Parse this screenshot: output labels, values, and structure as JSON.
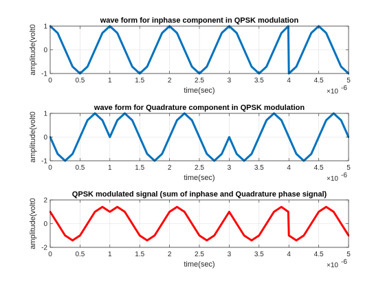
{
  "figure": {
    "background": "#ffffff"
  },
  "chart_data": [
    {
      "type": "line",
      "title": "wave form for inphase component in QPSK modulation",
      "xlabel": "time(sec)",
      "ylabel": "amplitude(volt0",
      "x_exponent_label": "×10",
      "x_exponent_power": "-6",
      "xlim": [
        0,
        5
      ],
      "ylim": [
        -1,
        1
      ],
      "xticks": [
        0,
        0.5,
        1,
        1.5,
        2,
        2.5,
        3,
        3.5,
        4,
        4.5,
        5
      ],
      "xtick_labels": [
        "0",
        "0.5",
        "1",
        "1.5",
        "2",
        "2.5",
        "3",
        "3.5",
        "4",
        "4.5",
        "5"
      ],
      "yticks": [
        -1,
        0,
        1
      ],
      "ytick_labels": [
        "-1",
        "0",
        "1"
      ],
      "grid": true,
      "series": [
        {
          "color": "#0072bd",
          "x": [
            0,
            0.125,
            0.25,
            0.375,
            0.5,
            0.625,
            0.75,
            0.875,
            1,
            1.125,
            1.25,
            1.375,
            1.5,
            1.625,
            1.75,
            1.875,
            2,
            2.125,
            2.25,
            2.375,
            2.5,
            2.625,
            2.75,
            2.875,
            3,
            3.125,
            3.25,
            3.375,
            3.5,
            3.625,
            3.75,
            3.875,
            3.99,
            4.0,
            4.125,
            4.25,
            4.375,
            4.5,
            4.625,
            4.75,
            4.875,
            5
          ],
          "y": [
            1,
            0.71,
            0,
            -0.71,
            -1,
            -0.71,
            0,
            0.71,
            1,
            0.71,
            0,
            -0.71,
            -1,
            -0.71,
            0,
            0.71,
            1,
            0.71,
            0,
            -0.71,
            -1,
            -0.71,
            0,
            0.71,
            1,
            0.71,
            0,
            -0.71,
            -1,
            -0.71,
            0,
            0.71,
            1,
            -1,
            -0.71,
            0,
            0.71,
            1,
            0.71,
            0,
            -0.71,
            -1
          ]
        }
      ]
    },
    {
      "type": "line",
      "title": "wave form for Quadrature component in QPSK modulation",
      "xlabel": "time(sec)",
      "ylabel": "amplitude(volt0",
      "x_exponent_label": "×10",
      "x_exponent_power": "-6",
      "xlim": [
        0,
        5
      ],
      "ylim": [
        -1,
        1
      ],
      "xticks": [
        0,
        0.5,
        1,
        1.5,
        2,
        2.5,
        3,
        3.5,
        4,
        4.5,
        5
      ],
      "xtick_labels": [
        "0",
        "0.5",
        "1",
        "1.5",
        "2",
        "2.5",
        "3",
        "3.5",
        "4",
        "4.5",
        "5"
      ],
      "yticks": [
        -1,
        0,
        1
      ],
      "ytick_labels": [
        "-1",
        "0",
        "1"
      ],
      "grid": true,
      "series": [
        {
          "color": "#0072bd",
          "x": [
            0,
            0.125,
            0.25,
            0.375,
            0.5,
            0.625,
            0.75,
            0.875,
            1,
            1.125,
            1.25,
            1.375,
            1.5,
            1.625,
            1.75,
            1.875,
            2,
            2.125,
            2.25,
            2.375,
            2.5,
            2.625,
            2.75,
            2.875,
            3,
            3.125,
            3.25,
            3.375,
            3.5,
            3.625,
            3.75,
            3.875,
            4,
            4.125,
            4.25,
            4.375,
            4.5,
            4.625,
            4.75,
            4.875,
            5
          ],
          "y": [
            0,
            -0.71,
            -1,
            -0.71,
            0,
            0.71,
            1,
            0.71,
            0,
            0.71,
            1,
            0.71,
            0,
            -0.71,
            -1,
            -0.71,
            0,
            0.71,
            1,
            0.71,
            0,
            -0.71,
            -1,
            -0.71,
            0,
            -0.71,
            -1,
            -0.71,
            0,
            0.71,
            1,
            0.71,
            0,
            -0.71,
            -1,
            -0.71,
            0,
            0.71,
            1,
            0.71,
            0
          ]
        }
      ]
    },
    {
      "type": "line",
      "title": "QPSK modulated signal (sum of inphase and Quadrature phase signal)",
      "xlabel": "time(sec)",
      "ylabel": "amplitude(volt0",
      "x_exponent_label": "×10",
      "x_exponent_power": "-6",
      "xlim": [
        0,
        5
      ],
      "ylim": [
        -2,
        2
      ],
      "xticks": [
        0,
        0.5,
        1,
        1.5,
        2,
        2.5,
        3,
        3.5,
        4,
        4.5,
        5
      ],
      "xtick_labels": [
        "0",
        "0.5",
        "1",
        "1.5",
        "2",
        "2.5",
        "3",
        "3.5",
        "4",
        "4.5",
        "5"
      ],
      "yticks": [
        -2,
        0,
        2
      ],
      "ytick_labels": [
        "-2",
        "0",
        "2"
      ],
      "grid": true,
      "series": [
        {
          "color": "#ff0000",
          "x": [
            0,
            0.125,
            0.25,
            0.375,
            0.5,
            0.625,
            0.75,
            0.875,
            1,
            1.125,
            1.25,
            1.375,
            1.5,
            1.625,
            1.75,
            1.875,
            2,
            2.125,
            2.25,
            2.375,
            2.5,
            2.625,
            2.75,
            2.875,
            3,
            3.125,
            3.25,
            3.375,
            3.5,
            3.625,
            3.75,
            3.875,
            3.99,
            4.0,
            4.125,
            4.25,
            4.375,
            4.5,
            4.625,
            4.75,
            4.875,
            5
          ],
          "y": [
            1,
            0,
            -1,
            -1.41,
            -1,
            0,
            1,
            1.41,
            1,
            1.41,
            1,
            0,
            -1,
            -1.41,
            -1,
            0,
            1,
            1.41,
            1,
            0,
            -1,
            -1.41,
            -1,
            0,
            1,
            0,
            -1,
            -1.41,
            -1,
            0,
            1,
            1.41,
            1,
            -1,
            -1.41,
            -1,
            0,
            1,
            1.41,
            1,
            0,
            -1
          ]
        }
      ]
    }
  ]
}
